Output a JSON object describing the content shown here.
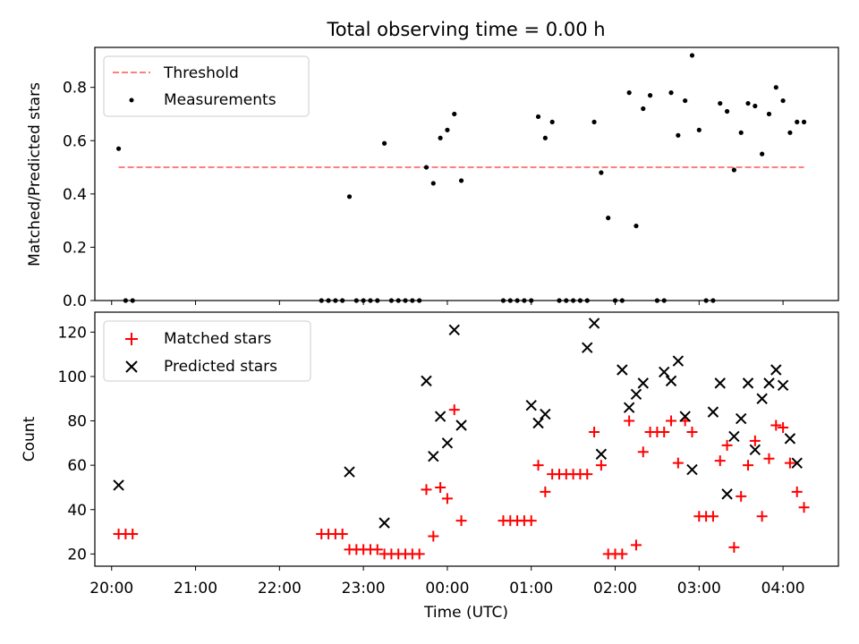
{
  "title": "Total observing time = 0.00 h",
  "chart_data": [
    {
      "type": "scatter",
      "ylabel": "Matched/Predicted stars",
      "xlim": [
        19.8,
        4.66
      ],
      "ylim": [
        0,
        0.95
      ],
      "y_ticks": [
        "0.0",
        "0.2",
        "0.4",
        "0.6",
        "0.8"
      ],
      "y_tick_values": [
        0,
        0.2,
        0.4,
        0.6,
        0.8
      ],
      "legend": [
        {
          "name": "Threshold",
          "symbol": "dashed-line",
          "color": "#ff7f7f"
        },
        {
          "name": "Measurements",
          "symbol": "dot",
          "color": "#000000"
        }
      ],
      "legend_position": "top-left",
      "threshold": {
        "value": 0.5,
        "x_start": "20:05",
        "x_end": "04:15",
        "color": "#ff7f7f"
      },
      "measurements": {
        "x": [
          "20:05",
          "20:10",
          "20:15",
          "22:30",
          "22:35",
          "22:40",
          "22:45",
          "22:50",
          "22:55",
          "23:00",
          "23:05",
          "23:10",
          "23:15",
          "23:20",
          "23:25",
          "23:30",
          "23:35",
          "23:40",
          "23:45",
          "23:50",
          "23:55",
          "00:00",
          "00:05",
          "00:10",
          "00:40",
          "00:45",
          "00:50",
          "00:55",
          "01:00",
          "01:05",
          "01:10",
          "01:15",
          "01:20",
          "01:25",
          "01:30",
          "01:35",
          "01:40",
          "01:45",
          "01:50",
          "01:55",
          "02:00",
          "02:05",
          "02:10",
          "02:15",
          "02:20",
          "02:25",
          "02:30",
          "02:35",
          "02:40",
          "02:45",
          "02:50",
          "02:55",
          "03:00",
          "03:05",
          "03:10",
          "03:15",
          "03:20",
          "03:25",
          "03:30",
          "03:35",
          "03:40",
          "03:45",
          "03:50",
          "03:55",
          "04:00",
          "04:05",
          "04:10",
          "04:15"
        ],
        "y": [
          0.57,
          0,
          0,
          0,
          0,
          0,
          0,
          0.39,
          0,
          0,
          0,
          0,
          0.59,
          0,
          0,
          0,
          0,
          0,
          0.5,
          0.44,
          0.61,
          0.64,
          0.7,
          0.45,
          0,
          0,
          0,
          0,
          0,
          0.69,
          0.61,
          0.67,
          0,
          0,
          0,
          0,
          0,
          0.67,
          0.48,
          0.31,
          0,
          0,
          0.78,
          0.28,
          0.72,
          0.77,
          0,
          0,
          0.78,
          0.62,
          0.75,
          0.92,
          0.64,
          0,
          0,
          0.74,
          0.71,
          0.49,
          0.63,
          0.74,
          0.73,
          0.55,
          0.7,
          0.8,
          0.75,
          0.63,
          0.67,
          0.67
        ]
      }
    },
    {
      "type": "scatter",
      "xlabel": "Time (UTC)",
      "ylabel": "Count",
      "xlim": [
        19.8,
        4.66
      ],
      "ylim": [
        14.5,
        129
      ],
      "x_ticks": [
        "20:00",
        "21:00",
        "22:00",
        "23:00",
        "00:00",
        "01:00",
        "02:00",
        "03:00",
        "04:00"
      ],
      "x_tick_values": [
        20,
        21,
        22,
        23,
        24,
        25,
        26,
        27,
        28
      ],
      "y_ticks": [
        "20",
        "40",
        "60",
        "80",
        "100",
        "120"
      ],
      "y_tick_values": [
        20,
        40,
        60,
        80,
        100,
        120
      ],
      "legend_position": "top-left",
      "series": [
        {
          "name": "Matched stars",
          "marker": "plus",
          "color": "#ff0000",
          "x": [
            "20:05",
            "20:10",
            "20:15",
            "22:30",
            "22:35",
            "22:40",
            "22:45",
            "22:50",
            "22:55",
            "23:00",
            "23:05",
            "23:10",
            "23:15",
            "23:20",
            "23:25",
            "23:30",
            "23:35",
            "23:40",
            "23:45",
            "23:50",
            "23:55",
            "00:00",
            "00:05",
            "00:10",
            "00:40",
            "00:45",
            "00:50",
            "00:55",
            "01:00",
            "01:05",
            "01:10",
            "01:15",
            "01:20",
            "01:25",
            "01:30",
            "01:35",
            "01:40",
            "01:45",
            "01:50",
            "01:55",
            "02:00",
            "02:05",
            "02:10",
            "02:15",
            "02:20",
            "02:25",
            "02:30",
            "02:35",
            "02:40",
            "02:45",
            "02:50",
            "02:55",
            "03:00",
            "03:05",
            "03:10",
            "03:15",
            "03:20",
            "03:25",
            "03:30",
            "03:35",
            "03:40",
            "03:45",
            "03:50",
            "03:55",
            "04:00",
            "04:05",
            "04:10",
            "04:15"
          ],
          "y": [
            29,
            29,
            29,
            29,
            29,
            29,
            29,
            22,
            22,
            22,
            22,
            22,
            20,
            20,
            20,
            20,
            20,
            20,
            49,
            28,
            50,
            45,
            85,
            35,
            35,
            35,
            35,
            35,
            35,
            60,
            48,
            56,
            56,
            56,
            56,
            56,
            56,
            75,
            60,
            20,
            20,
            20,
            80,
            24,
            66,
            75,
            75,
            75,
            80,
            61,
            80,
            75,
            37,
            37,
            37,
            62,
            69,
            23,
            46,
            60,
            71,
            37,
            63,
            78,
            77,
            61,
            48,
            41
          ]
        },
        {
          "name": "Predicted stars",
          "marker": "x",
          "color": "#000000",
          "x": [
            "20:05",
            "22:50",
            "23:15",
            "23:45",
            "23:50",
            "23:55",
            "00:00",
            "00:05",
            "00:10",
            "01:00",
            "01:05",
            "01:10",
            "01:40",
            "01:45",
            "01:50",
            "02:05",
            "02:10",
            "02:15",
            "02:20",
            "02:35",
            "02:40",
            "02:45",
            "02:50",
            "02:55",
            "03:10",
            "03:15",
            "03:20",
            "03:25",
            "03:30",
            "03:35",
            "03:40",
            "03:45",
            "03:50",
            "03:55",
            "04:00",
            "04:05",
            "04:10"
          ],
          "y": [
            51,
            57,
            34,
            98,
            64,
            82,
            70,
            121,
            78,
            87,
            79,
            83,
            113,
            124,
            65,
            103,
            86,
            92,
            97,
            102,
            98,
            107,
            82,
            58,
            84,
            97,
            47,
            73,
            81,
            97,
            67,
            90,
            97,
            103,
            96,
            72,
            61
          ]
        }
      ]
    }
  ]
}
